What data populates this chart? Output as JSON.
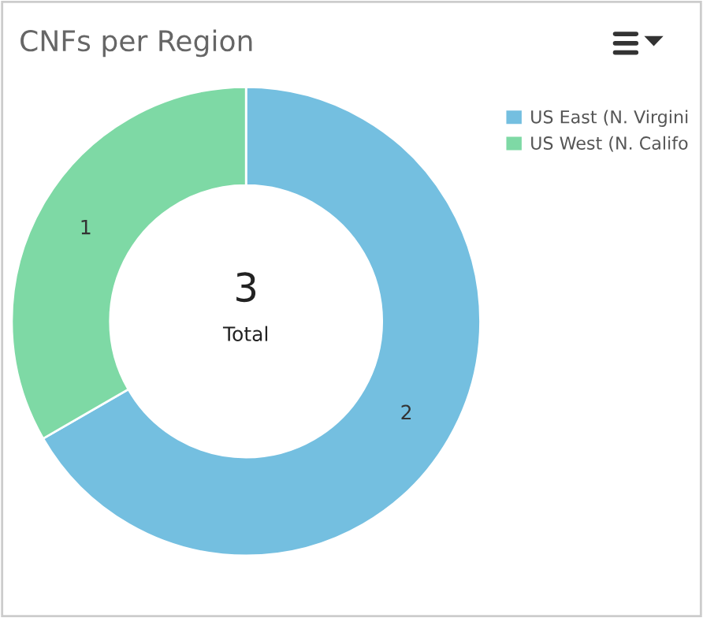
{
  "chart_data": {
    "type": "donut",
    "title": "CNFs per Region",
    "categories": [
      "US East (N. Virgini",
      "US West (N. Califo"
    ],
    "values": [
      2,
      1
    ],
    "colors": [
      "#74bfe0",
      "#7ed9a5"
    ],
    "data_labels": true,
    "legend": "top right",
    "annotations": [
      "3",
      "Total"
    ]
  }
}
